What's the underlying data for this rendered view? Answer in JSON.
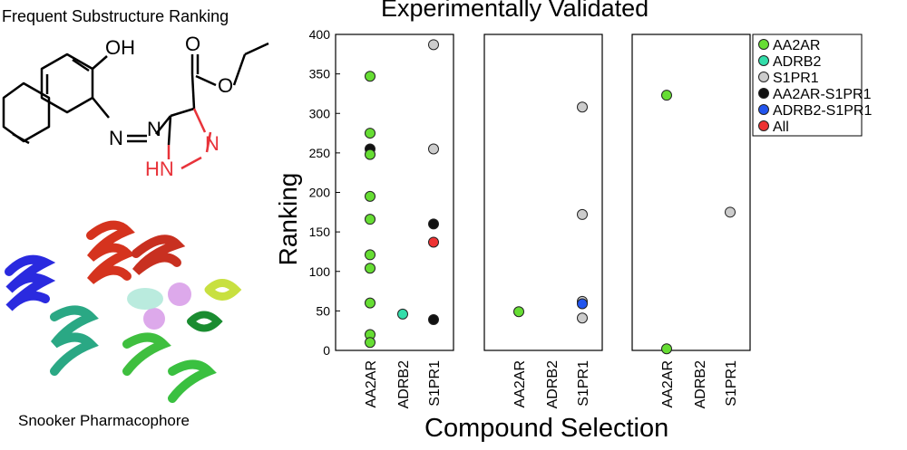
{
  "left_panel": {
    "top_title": "Frequent Substructure Ranking",
    "bottom_title": "Snooker Pharmacophore",
    "molecule_labels": [
      "OH",
      "N",
      "N",
      "O",
      "O",
      "N",
      "HN"
    ]
  },
  "chart_data": {
    "type": "scatter",
    "title": "Experimentally Validated",
    "xlabel": "Compound Selection",
    "ylabel": "Ranking",
    "ylim": [
      0,
      400
    ],
    "yticks": [
      0,
      50,
      100,
      150,
      200,
      250,
      300,
      350,
      400
    ],
    "categories": [
      "AA2AR",
      "ADRB2",
      "S1PR1"
    ],
    "legend_position": "top-right",
    "legend": [
      {
        "name": "AA2AR",
        "color": "#66dd33"
      },
      {
        "name": "ADRB2",
        "color": "#33ddaa"
      },
      {
        "name": "S1PR1",
        "color": "#cccccc"
      },
      {
        "name": "AA2AR-S1PR1",
        "color": "#111111"
      },
      {
        "name": "ADRB2-S1PR1",
        "color": "#2255ee"
      },
      {
        "name": "All",
        "color": "#ee3333"
      }
    ],
    "panels": [
      {
        "points": [
          {
            "x": "AA2AR",
            "y": 347,
            "series": "AA2AR"
          },
          {
            "x": "AA2AR",
            "y": 275,
            "series": "AA2AR"
          },
          {
            "x": "AA2AR",
            "y": 255,
            "series": "AA2AR-S1PR1"
          },
          {
            "x": "AA2AR",
            "y": 248,
            "series": "AA2AR"
          },
          {
            "x": "AA2AR",
            "y": 195,
            "series": "AA2AR"
          },
          {
            "x": "AA2AR",
            "y": 166,
            "series": "AA2AR"
          },
          {
            "x": "AA2AR",
            "y": 121,
            "series": "AA2AR"
          },
          {
            "x": "AA2AR",
            "y": 104,
            "series": "AA2AR"
          },
          {
            "x": "AA2AR",
            "y": 60,
            "series": "AA2AR"
          },
          {
            "x": "AA2AR",
            "y": 20,
            "series": "AA2AR"
          },
          {
            "x": "AA2AR",
            "y": 10,
            "series": "AA2AR"
          },
          {
            "x": "ADRB2",
            "y": 46,
            "series": "ADRB2"
          },
          {
            "x": "S1PR1",
            "y": 387,
            "series": "S1PR1"
          },
          {
            "x": "S1PR1",
            "y": 255,
            "series": "S1PR1"
          },
          {
            "x": "S1PR1",
            "y": 160,
            "series": "AA2AR-S1PR1"
          },
          {
            "x": "S1PR1",
            "y": 137,
            "series": "All"
          },
          {
            "x": "S1PR1",
            "y": 39,
            "series": "AA2AR-S1PR1"
          }
        ]
      },
      {
        "points": [
          {
            "x": "AA2AR",
            "y": 49,
            "series": "AA2AR"
          },
          {
            "x": "S1PR1",
            "y": 308,
            "series": "S1PR1"
          },
          {
            "x": "S1PR1",
            "y": 172,
            "series": "S1PR1"
          },
          {
            "x": "S1PR1",
            "y": 62,
            "series": "S1PR1"
          },
          {
            "x": "S1PR1",
            "y": 59,
            "series": "ADRB2-S1PR1"
          },
          {
            "x": "S1PR1",
            "y": 41,
            "series": "S1PR1"
          }
        ]
      },
      {
        "points": [
          {
            "x": "AA2AR",
            "y": 323,
            "series": "AA2AR"
          },
          {
            "x": "AA2AR",
            "y": 2,
            "series": "AA2AR"
          },
          {
            "x": "S1PR1",
            "y": 175,
            "series": "S1PR1"
          }
        ]
      }
    ]
  }
}
